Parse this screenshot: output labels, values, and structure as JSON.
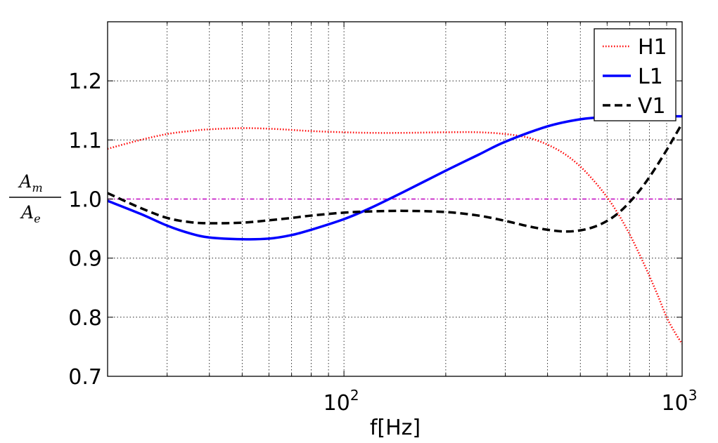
{
  "chart_data": {
    "type": "line",
    "title": "",
    "xlabel": "f[Hz]",
    "ylabel": {
      "numerator": "A",
      "numerator_sub": "m",
      "denominator": "A",
      "denominator_sub": "e"
    },
    "xscale": "log",
    "xlim": [
      20,
      1000
    ],
    "ylim": [
      0.7,
      1.3
    ],
    "xticks": [
      {
        "value": 100,
        "base": "10",
        "exp": "2"
      },
      {
        "value": 1000,
        "base": "10",
        "exp": "3"
      }
    ],
    "yticks": [
      0.7,
      0.8,
      0.9,
      1.0,
      1.1,
      1.2
    ],
    "ytick_labels": [
      "0.7",
      "0.8",
      "0.9",
      "1.0",
      "1.1",
      "1.2"
    ],
    "grid": true,
    "legend_position": "top-right",
    "reference_line": {
      "y": 1.0,
      "color": "#bf00bf",
      "style": "dash-dot"
    },
    "series": [
      {
        "name": "H1",
        "color": "#ff0000",
        "style": "dotted",
        "x": [
          20,
          25,
          30,
          35,
          40,
          50,
          60,
          70,
          80,
          100,
          120,
          150,
          200,
          250,
          300,
          350,
          400,
          450,
          500,
          550,
          600,
          650,
          700,
          750,
          800,
          850,
          900,
          950,
          1000
        ],
        "y": [
          1.085,
          1.1,
          1.11,
          1.115,
          1.118,
          1.12,
          1.119,
          1.117,
          1.115,
          1.113,
          1.112,
          1.112,
          1.113,
          1.113,
          1.11,
          1.104,
          1.092,
          1.076,
          1.055,
          1.03,
          1.003,
          0.973,
          0.94,
          0.905,
          0.87,
          0.835,
          0.8,
          0.775,
          0.755
        ]
      },
      {
        "name": "L1",
        "color": "#0000ff",
        "style": "solid",
        "x": [
          20,
          25,
          30,
          35,
          40,
          50,
          60,
          70,
          80,
          100,
          120,
          150,
          200,
          250,
          300,
          400,
          500,
          600,
          700,
          800,
          900,
          1000
        ],
        "y": [
          0.997,
          0.975,
          0.955,
          0.942,
          0.935,
          0.932,
          0.933,
          0.939,
          0.948,
          0.966,
          0.985,
          1.012,
          1.048,
          1.075,
          1.097,
          1.123,
          1.135,
          1.139,
          1.14,
          1.14,
          1.14,
          1.14
        ]
      },
      {
        "name": "V1",
        "color": "#000000",
        "style": "dashed",
        "x": [
          20,
          25,
          30,
          35,
          40,
          50,
          60,
          70,
          80,
          100,
          120,
          150,
          200,
          250,
          300,
          350,
          400,
          450,
          500,
          550,
          600,
          650,
          700,
          750,
          800,
          850,
          900,
          950,
          1000
        ],
        "y": [
          1.01,
          0.985,
          0.968,
          0.961,
          0.959,
          0.96,
          0.964,
          0.968,
          0.972,
          0.977,
          0.979,
          0.98,
          0.978,
          0.972,
          0.963,
          0.954,
          0.948,
          0.945,
          0.947,
          0.953,
          0.963,
          0.977,
          0.995,
          1.015,
          1.037,
          1.06,
          1.083,
          1.106,
          1.128
        ]
      }
    ]
  }
}
